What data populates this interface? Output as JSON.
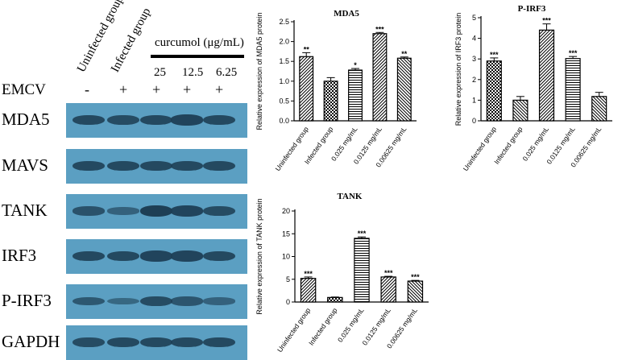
{
  "blot": {
    "lane_headers": [
      "Uninfected group",
      "Infected group"
    ],
    "treatment_label": "curcumol (μg/mL)",
    "concentrations": [
      "25",
      "12.5",
      "6.25"
    ],
    "emcv_label": "EMCV",
    "emcv_signs": [
      "-",
      "+",
      "+",
      "+",
      "+"
    ],
    "rows": [
      {
        "label": "MDA5",
        "intensity": [
          0.85,
          0.8,
          0.85,
          0.9,
          0.85
        ]
      },
      {
        "label": "MAVS",
        "intensity": [
          0.85,
          0.85,
          0.85,
          0.85,
          0.85
        ]
      },
      {
        "label": "TANK",
        "intensity": [
          0.7,
          0.45,
          1.0,
          0.9,
          0.8
        ]
      },
      {
        "label": "IRF3",
        "intensity": [
          0.85,
          0.85,
          0.9,
          0.9,
          0.85
        ]
      },
      {
        "label": "P-IRF3",
        "intensity": [
          0.6,
          0.35,
          0.8,
          0.65,
          0.45
        ]
      },
      {
        "label": "GAPDH",
        "intensity": [
          0.8,
          0.85,
          0.85,
          0.85,
          0.85
        ]
      }
    ]
  },
  "chart_data": [
    {
      "type": "bar",
      "title": "MDA5",
      "ylabel": "Relative expression of MDA5 protein",
      "categories": [
        "Uninfected group",
        "Infected group",
        "0.025 mg/mL",
        "0.0125 mg/mL",
        "0.00625 mg/mL"
      ],
      "values": [
        1.62,
        1.0,
        1.28,
        2.2,
        1.58
      ],
      "errors": [
        0.1,
        0.09,
        0.04,
        0.03,
        0.03
      ],
      "significance": [
        "**",
        "",
        "*",
        "***",
        "**"
      ],
      "ylim": [
        0,
        2.5
      ],
      "yticks": [
        "0.0",
        "0.5",
        "1.0",
        "1.5",
        "2.0",
        "2.5"
      ],
      "ytick_values": [
        0,
        0.5,
        1.0,
        1.5,
        2.0,
        2.5
      ],
      "patterns": [
        "diag-fwd",
        "checker",
        "hstripe",
        "diag-fwd",
        "diag-back"
      ]
    },
    {
      "type": "bar",
      "title": "P-IRF3",
      "ylabel": "Relative expression of IRF3 protein",
      "categories": [
        "Uninfected group",
        "Infected group",
        "0.025 mg/mL",
        "0.0125 mg/mL",
        "0.00625 mg/mL"
      ],
      "values": [
        2.9,
        1.0,
        4.4,
        3.02,
        1.18
      ],
      "errors": [
        0.15,
        0.18,
        0.3,
        0.1,
        0.2
      ],
      "significance": [
        "***",
        "",
        "***",
        "***",
        ""
      ],
      "ylim": [
        0,
        5
      ],
      "yticks": [
        "0",
        "1",
        "2",
        "3",
        "4",
        "5"
      ],
      "ytick_values": [
        0,
        1,
        2,
        3,
        4,
        5
      ],
      "patterns": [
        "checker",
        "diag-back",
        "diag-fwd",
        "hstripe",
        "diag-back"
      ]
    },
    {
      "type": "bar",
      "title": "TANK",
      "ylabel": "Relative expression of TANK protein",
      "categories": [
        "Uninfected group",
        "Infected group",
        "0.025 mg/mL",
        "0.0125 mg/mL",
        "0.00625 mg/mL"
      ],
      "values": [
        5.2,
        1.0,
        14.0,
        5.5,
        4.6
      ],
      "errors": [
        0.3,
        0.1,
        0.3,
        0.15,
        0.15
      ],
      "significance": [
        "***",
        "",
        "***",
        "***",
        "***"
      ],
      "ylim": [
        0,
        20
      ],
      "yticks": [
        "0",
        "5",
        "10",
        "15",
        "20"
      ],
      "ytick_values": [
        0,
        5,
        10,
        15,
        20
      ],
      "patterns": [
        "diag-fwd",
        "checker",
        "hstripe",
        "diag-fwd",
        "diag-back"
      ]
    }
  ]
}
